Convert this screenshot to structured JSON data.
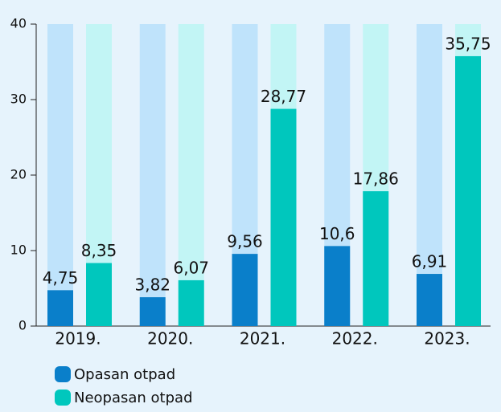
{
  "chart_data": {
    "type": "bar",
    "categories": [
      "2019.",
      "2020.",
      "2021.",
      "2022.",
      "2023."
    ],
    "series": [
      {
        "name": "Opasan otpad",
        "color": "#0a7fca",
        "track": "#bfe3fb",
        "values": [
          4.75,
          3.82,
          9.56,
          10.6,
          6.91
        ],
        "value_labels": [
          "4,75",
          "3,82",
          "9,56",
          "10,6",
          "6,91"
        ]
      },
      {
        "name": "Neopasan otpad",
        "color": "#00c7bd",
        "track": "#c2f5f5",
        "values": [
          8.35,
          6.07,
          28.77,
          17.86,
          35.75
        ],
        "value_labels": [
          "8,35",
          "6,07",
          "28,77",
          "17,86",
          "35,75"
        ]
      }
    ],
    "ylim": [
      0,
      40
    ],
    "yticks": [
      0,
      10,
      20,
      30,
      40
    ]
  }
}
